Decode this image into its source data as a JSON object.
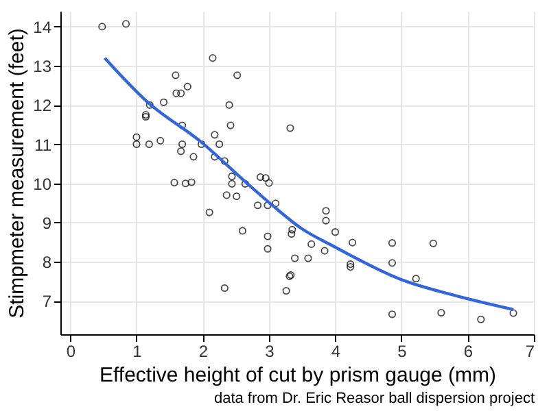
{
  "chart_data": {
    "type": "scatter",
    "xlabel": "Effective height of cut by prism gauge (mm)",
    "ylabel": "Stimpmeter measurement (feet)",
    "annotations": [
      "data from Dr. Eric Reasor ball dispersion project"
    ],
    "xlim": [
      -0.15,
      7.0
    ],
    "xticks": [
      0,
      1,
      2,
      3,
      4,
      5,
      6,
      7
    ],
    "ylim": [
      6.15,
      14.4
    ],
    "yticks": [
      7,
      8,
      9,
      10,
      11,
      12,
      13,
      14
    ],
    "grid": true,
    "series": [
      {
        "marker": "circle",
        "color": "#000000",
        "x": [
          0.48,
          0.84,
          2.15,
          1.59,
          2.52,
          1.6,
          1.67,
          1.77,
          1.2,
          1.14,
          1.14,
          1.41,
          2.4,
          1.69,
          2.42,
          1.0,
          1.0,
          1.19,
          1.36,
          1.67,
          1.69,
          1.98,
          1.86,
          2.18,
          2.25,
          2.18,
          2.33,
          1.57,
          1.74,
          1.83,
          2.44,
          2.44,
          2.36,
          2.51,
          2.64,
          2.1,
          2.6,
          2.33,
          2.87,
          2.95,
          3.0,
          2.83,
          2.98,
          3.1,
          3.32,
          2.98,
          2.98,
          3.35,
          3.34,
          3.39,
          3.31,
          3.33,
          3.26,
          3.86,
          3.86,
          4.0,
          3.64,
          3.59,
          3.84,
          4.26,
          4.23,
          4.23,
          4.86,
          4.86,
          4.86,
          5.22,
          5.48,
          5.6,
          6.2,
          6.69
        ],
        "values": [
          14.0,
          14.07,
          13.2,
          12.76,
          12.76,
          12.3,
          12.3,
          12.47,
          12.0,
          11.75,
          11.7,
          12.07,
          12.0,
          11.48,
          11.48,
          11.18,
          11.0,
          11.0,
          11.09,
          10.82,
          11.0,
          11.0,
          10.68,
          11.24,
          11.0,
          10.68,
          10.57,
          10.02,
          10.0,
          10.03,
          10.18,
          9.99,
          9.7,
          9.67,
          9.99,
          9.26,
          8.79,
          7.33,
          10.16,
          10.14,
          10.01,
          9.44,
          9.44,
          9.49,
          11.41,
          8.65,
          8.33,
          8.82,
          8.71,
          8.09,
          7.63,
          7.66,
          7.26,
          9.3,
          9.05,
          8.76,
          8.45,
          8.09,
          8.28,
          8.49,
          7.94,
          7.87,
          8.48,
          7.97,
          6.66,
          7.57,
          8.47,
          6.7,
          6.53,
          6.69
        ]
      },
      {
        "type": "line",
        "marker": "none",
        "color": "#3366dd",
        "x": [
          0.52,
          1.15,
          1.98,
          2.67,
          3.08,
          3.49,
          3.97,
          4.99,
          5.83,
          6.69
        ],
        "values": [
          13.2,
          12.1,
          11.05,
          10.0,
          9.4,
          8.85,
          8.4,
          7.55,
          7.13,
          6.78
        ]
      }
    ]
  }
}
